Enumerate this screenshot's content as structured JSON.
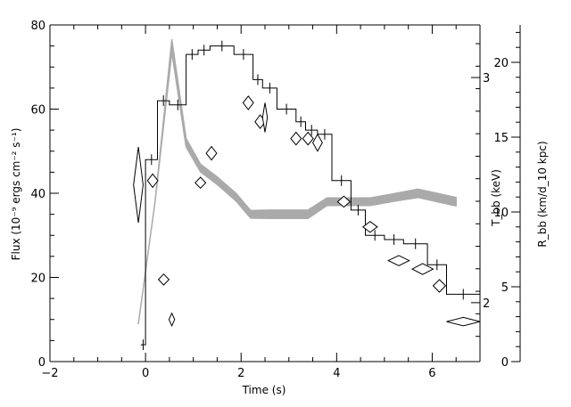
{
  "chart_data": {
    "type": "line",
    "xlabel": "Time (s)",
    "ylabel": "Flux (10⁻⁹ ergs cm⁻² s⁻¹)",
    "y2label_kt": "T_bb (keV)",
    "y3label_rbb": "R_bb (km/d_10 kpc)",
    "xlim": [
      -2,
      7
    ],
    "ylim": [
      0,
      80
    ],
    "x_ticks": [
      "−2",
      "0",
      "2",
      "4",
      "6"
    ],
    "x_tick_values": [
      -2,
      0,
      2,
      4,
      6
    ],
    "y_ticks": [
      "0",
      "20",
      "40",
      "60",
      "80"
    ],
    "y_tick_values": [
      0,
      20,
      40,
      60,
      80
    ],
    "kt_ticks": [
      "2",
      "3"
    ],
    "kt_tick_flux_positions": [
      14,
      67.5
    ],
    "rbb_ticks": [
      "0",
      "5",
      "10",
      "15",
      "20"
    ],
    "rbb_tick_values": [
      0,
      5,
      10,
      15,
      20
    ],
    "rbb_range": [
      0,
      22.5
    ],
    "grid": false,
    "series": [
      {
        "style": "histogram",
        "color": "#000000",
        "edges": [
          -0.1,
          0.0,
          0.25,
          0.5,
          0.85,
          1.1,
          1.35,
          1.85,
          2.25,
          2.45,
          2.75,
          3.15,
          3.35,
          3.6,
          3.9,
          4.3,
          4.6,
          5.0,
          5.4,
          5.9,
          6.3,
          7.0
        ],
        "values": [
          4,
          48,
          62,
          61,
          73,
          74,
          75,
          73,
          67,
          65,
          60,
          57,
          55,
          54,
          43,
          36,
          30,
          29,
          28,
          23,
          16
        ]
      },
      {
        "style": "band",
        "color": "#aaaaaa",
        "x": [
          -0.15,
          0.2,
          0.55,
          0.85,
          1.15,
          1.5,
          1.9,
          2.2,
          2.6,
          3.0,
          3.4,
          3.8,
          4.2,
          4.7,
          5.2,
          5.7,
          6.1,
          6.5
        ],
        "y": [
          9,
          38,
          75,
          52,
          46,
          43,
          39,
          35,
          35,
          35,
          35,
          38,
          38,
          38,
          39,
          40,
          39,
          38
        ],
        "halfwidth": [
          0,
          0,
          1.5,
          1.0,
          0.9,
          0.9,
          0.9,
          0.9,
          1.0,
          1.0,
          1.0,
          0.9,
          0.9,
          0.9,
          0.9,
          1.0,
          1.0,
          1.0
        ]
      },
      {
        "style": "diamonds",
        "color": "#000000",
        "x": [
          -0.15,
          0.15,
          0.38,
          0.55,
          1.15,
          1.38,
          2.15,
          2.4,
          2.5,
          3.15,
          3.4,
          3.6,
          4.15,
          4.7,
          5.3,
          5.8,
          6.15,
          6.65
        ],
        "y": [
          42,
          43,
          19.5,
          10,
          42.5,
          49.5,
          61.5,
          57,
          58,
          53,
          53,
          52,
          38,
          32,
          24,
          22,
          18,
          9.5
        ],
        "dx": [
          0.1,
          0.11,
          0.11,
          0.06,
          0.11,
          0.11,
          0.11,
          0.11,
          0.05,
          0.11,
          0.11,
          0.1,
          0.13,
          0.15,
          0.22,
          0.22,
          0.13,
          0.35
        ],
        "dy": [
          9,
          1.6,
          1.3,
          1.5,
          1.3,
          1.6,
          1.6,
          1.6,
          3.5,
          1.5,
          1.5,
          2.0,
          1.3,
          1.3,
          1.2,
          1.3,
          1.5,
          1.0
        ]
      }
    ]
  }
}
